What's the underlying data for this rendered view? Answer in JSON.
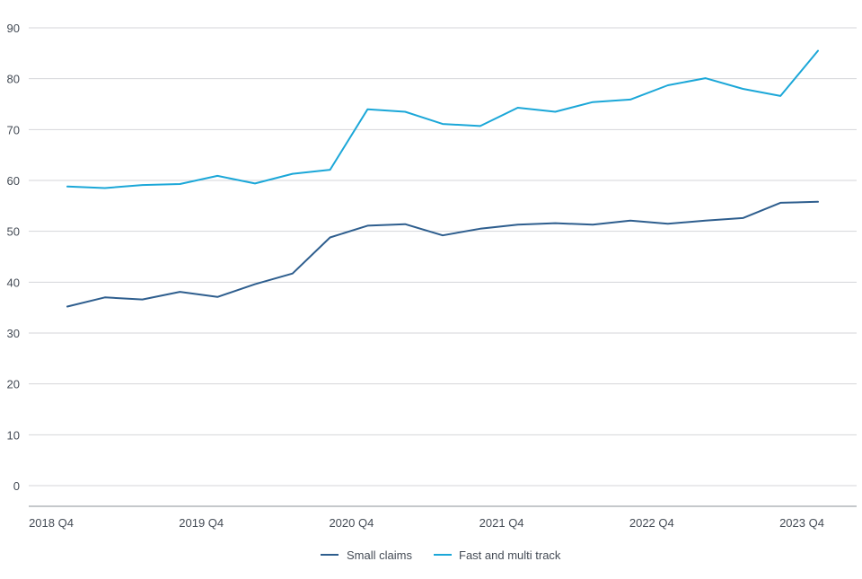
{
  "chart_data": {
    "type": "line",
    "title": "",
    "xlabel": "",
    "ylabel": "",
    "ylim": [
      0,
      90
    ],
    "yticks": [
      0,
      10,
      20,
      30,
      40,
      50,
      60,
      70,
      80,
      90
    ],
    "grid": true,
    "legend_position": "bottom-center",
    "x": [
      "2018 Q4",
      "2019 Q1",
      "2019 Q2",
      "2019 Q3",
      "2019 Q4",
      "2020 Q1",
      "2020 Q2",
      "2020 Q3",
      "2020 Q4",
      "2021 Q1",
      "2021 Q2",
      "2021 Q3",
      "2021 Q4",
      "2022 Q1",
      "2022 Q2",
      "2022 Q3",
      "2022 Q4",
      "2023 Q1",
      "2023 Q2",
      "2023 Q3",
      "2023 Q4"
    ],
    "xtick_labels": [
      "2018 Q4",
      "2019 Q4",
      "2020 Q4",
      "2021 Q4",
      "2022 Q4",
      "2023 Q4"
    ],
    "series": [
      {
        "name": "Small claims",
        "color": "#2e5e8e",
        "values": [
          35.2,
          37.0,
          36.6,
          38.1,
          37.1,
          39.6,
          41.7,
          48.8,
          51.1,
          51.4,
          49.2,
          50.5,
          51.3,
          51.6,
          51.3,
          52.1,
          51.5,
          52.1,
          52.6,
          55.6,
          55.8
        ]
      },
      {
        "name": "Fast and multi track",
        "color": "#1ba7d8",
        "values": [
          58.8,
          58.5,
          59.1,
          59.3,
          60.9,
          59.4,
          61.3,
          62.1,
          74.0,
          73.5,
          71.1,
          70.7,
          74.3,
          73.5,
          75.4,
          75.9,
          78.7,
          80.1,
          78.0,
          76.6,
          85.5
        ]
      }
    ]
  }
}
